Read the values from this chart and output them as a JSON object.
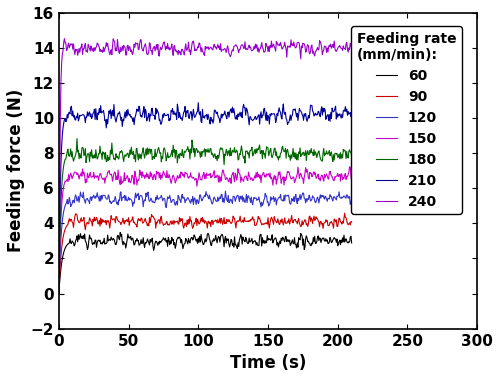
{
  "title": "",
  "xlabel": "Time (s)",
  "ylabel": "Feeding force (N)",
  "xlim": [
    0,
    300
  ],
  "ylim": [
    -2,
    16
  ],
  "xticks": [
    0,
    50,
    100,
    150,
    200,
    250,
    300
  ],
  "yticks": [
    -2,
    0,
    2,
    4,
    6,
    8,
    10,
    12,
    14,
    16
  ],
  "legend_title": "Feeding rate\n(mm/min):",
  "series": [
    {
      "label": "60",
      "color": "#000000",
      "steady": 3.0,
      "rise_time": 8,
      "noise": 0.25
    },
    {
      "label": "90",
      "color": "#cc0000",
      "steady": 4.1,
      "rise_time": 7,
      "noise": 0.22
    },
    {
      "label": "120",
      "color": "#3333cc",
      "steady": 5.4,
      "rise_time": 6,
      "noise": 0.22
    },
    {
      "label": "150",
      "color": "#cc00cc",
      "steady": 6.7,
      "rise_time": 5,
      "noise": 0.25
    },
    {
      "label": "180",
      "color": "#006600",
      "steady": 8.0,
      "rise_time": 5,
      "noise": 0.3
    },
    {
      "label": "210",
      "color": "#000099",
      "steady": 10.2,
      "rise_time": 4,
      "noise": 0.3
    },
    {
      "label": "240",
      "color": "#9900cc",
      "steady": 14.0,
      "rise_time": 3,
      "noise": 0.3
    }
  ],
  "t_end": 210,
  "t_start_dip": 0.5,
  "figsize": [
    5.0,
    3.79
  ],
  "dpi": 100
}
